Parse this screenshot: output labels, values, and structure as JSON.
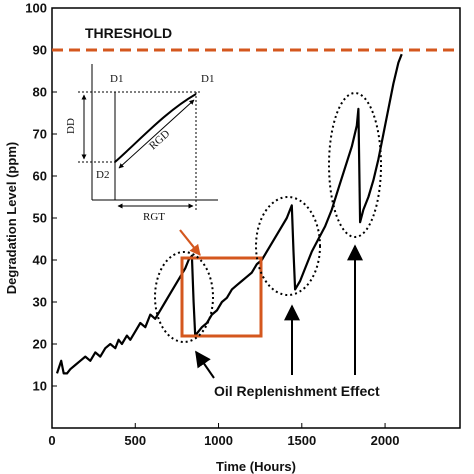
{
  "chart_data": {
    "type": "line",
    "title": "",
    "xlabel": "Time (Hours)",
    "ylabel": "Degradation Level (ppm)",
    "xlim": [
      0,
      2450
    ],
    "ylim": [
      0,
      100
    ],
    "xticks": [
      0,
      500,
      1000,
      1500,
      2000
    ],
    "yticks": [
      10,
      20,
      30,
      40,
      50,
      60,
      70,
      80,
      90,
      100
    ],
    "grid": false,
    "threshold": {
      "label": "THRESHOLD",
      "value": 90,
      "color": "#d4571e"
    },
    "series": [
      {
        "color": "#000000",
        "x": [
          30,
          55,
          70,
          90,
          110,
          140,
          170,
          200,
          230,
          260,
          290,
          320,
          350,
          380,
          400,
          420,
          450,
          470,
          500,
          530,
          560,
          590,
          620,
          650,
          680,
          710,
          740,
          770,
          800,
          820,
          840,
          850,
          860,
          880,
          900,
          930,
          960,
          990,
          1020,
          1050,
          1080,
          1110,
          1140,
          1170,
          1200,
          1230,
          1260,
          1290,
          1320,
          1350,
          1380,
          1410,
          1430,
          1440,
          1450,
          1460,
          1490,
          1520,
          1560,
          1600,
          1640,
          1680,
          1720,
          1760,
          1800,
          1830,
          1840,
          1850,
          1870,
          1900,
          1930,
          1960,
          1990,
          2020,
          2050,
          2080,
          2100
        ],
        "y": [
          13,
          16,
          13,
          13,
          14,
          15,
          16,
          17,
          16,
          18,
          17,
          19,
          20,
          19,
          21,
          20,
          22,
          21,
          23,
          25,
          24,
          27,
          26,
          28,
          30,
          32,
          34,
          36,
          38,
          40,
          41,
          30,
          22,
          23,
          24,
          25,
          27,
          28,
          30,
          31,
          33,
          34,
          35,
          36,
          37,
          39,
          40,
          42,
          44,
          46,
          48,
          50,
          52,
          53,
          42,
          33,
          35,
          38,
          42,
          45,
          48,
          52,
          57,
          62,
          67,
          72,
          76,
          49,
          52,
          55,
          59,
          64,
          70,
          76,
          82,
          87,
          89
        ]
      }
    ],
    "annotation": {
      "text": "Oil Replenishment Effect"
    },
    "inset": {
      "labels": {
        "d1_left": "D1",
        "d1_right": "D1",
        "d2": "D2",
        "dd": "DD",
        "rgd": "RGD",
        "rgt": "RGT"
      }
    }
  }
}
